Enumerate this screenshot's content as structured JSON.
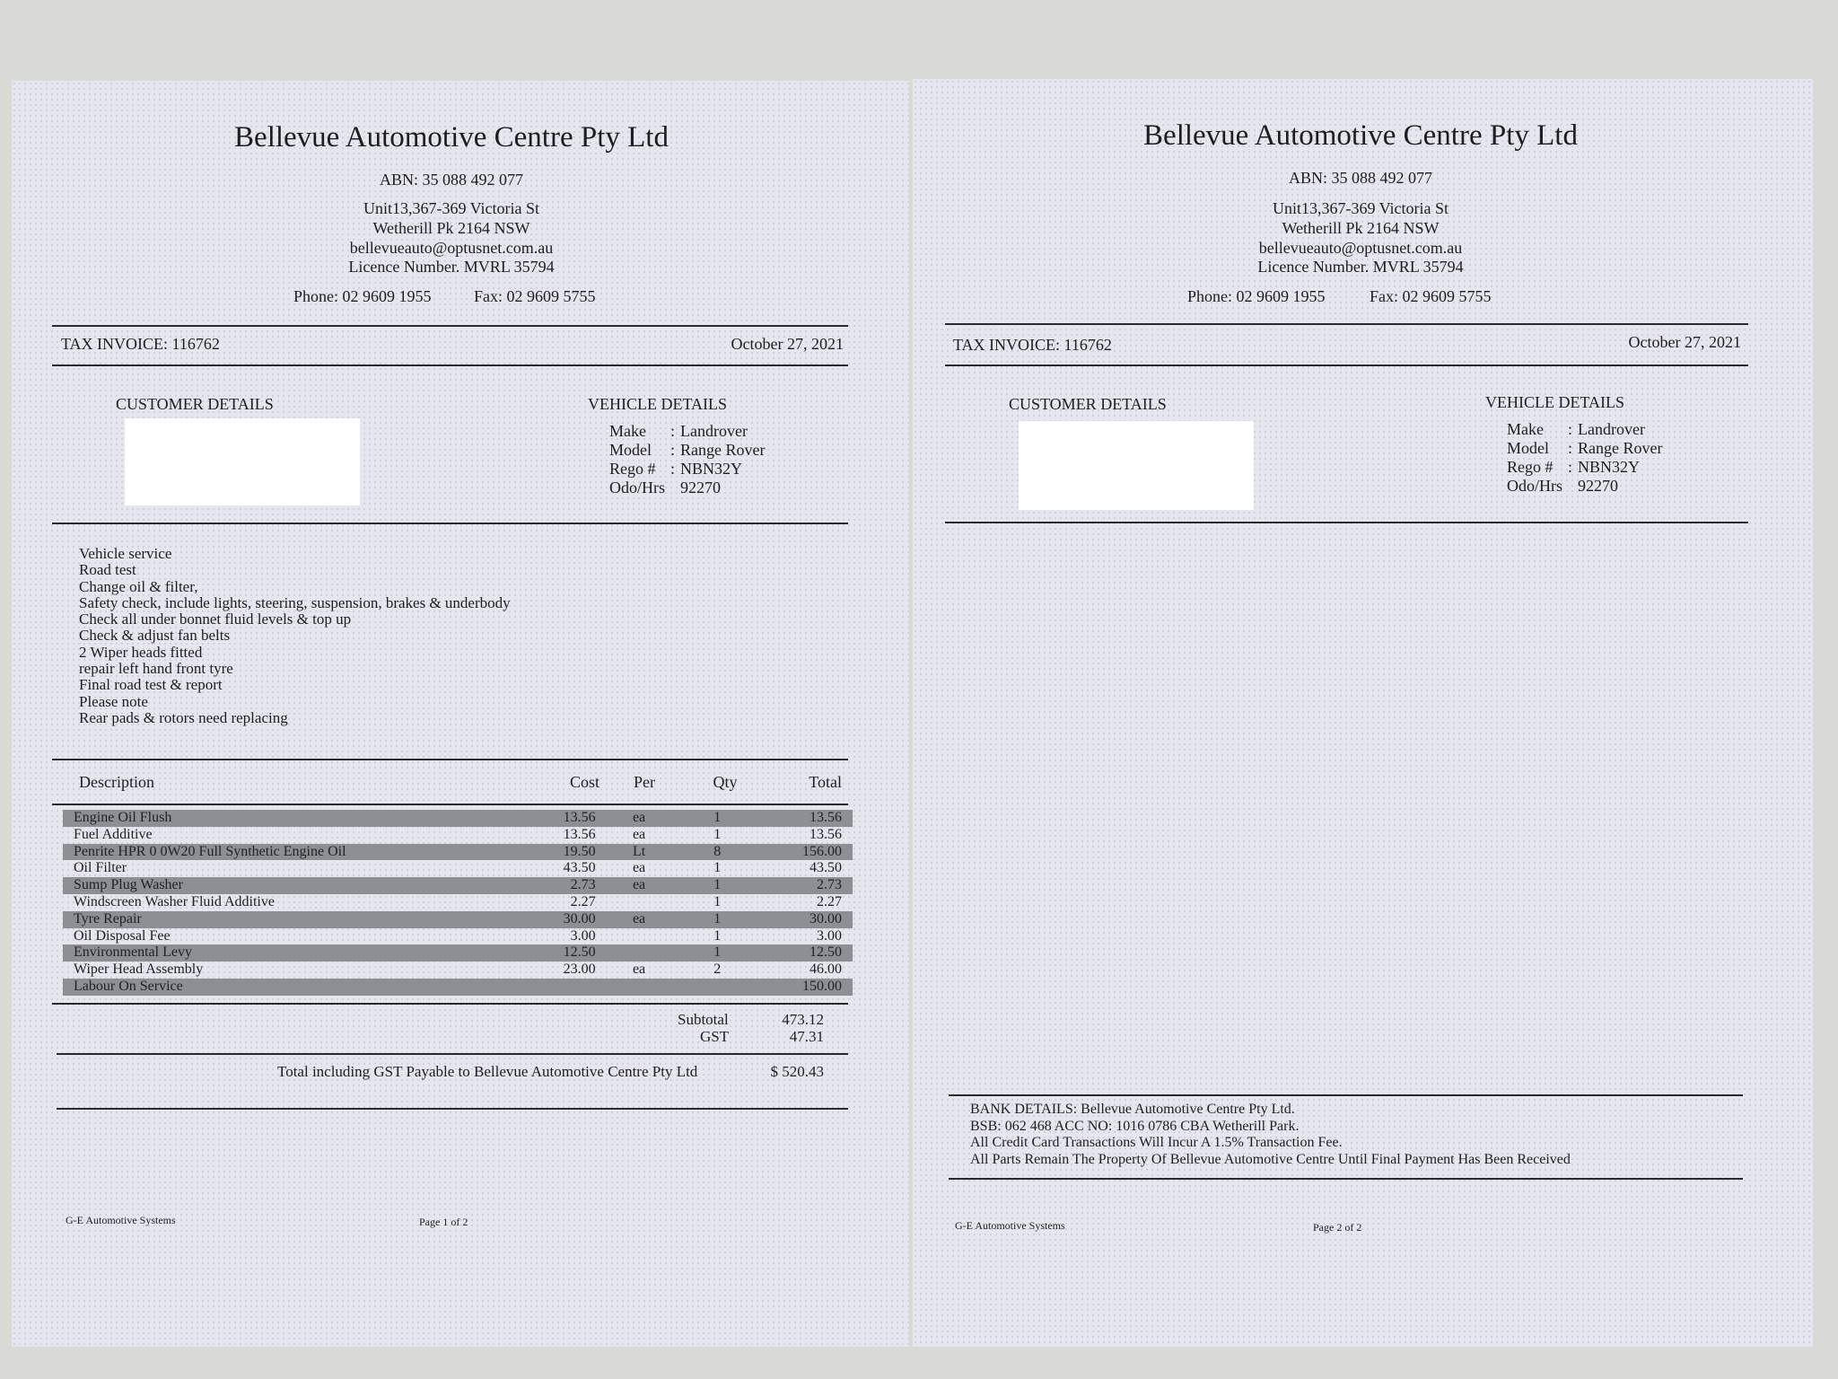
{
  "company": {
    "name": "Bellevue Automotive Centre Pty Ltd",
    "abn": "ABN: 35 088 492 077",
    "address_line1": "Unit13,367-369 Victoria St",
    "address_line2": "Wetherill Pk 2164 NSW",
    "email": "bellevueauto@optusnet.com.au",
    "licence": "Licence Number.  MVRL 35794",
    "phone": "Phone: 02 9609 1955",
    "fax": "Fax: 02 9609 5755"
  },
  "invoice": {
    "label": "TAX INVOICE: 116762",
    "date": "October 27, 2021"
  },
  "customer": {
    "heading": "CUSTOMER DETAILS"
  },
  "vehicle": {
    "heading": "VEHICLE DETAILS",
    "make_label": "Make",
    "make": "Landrover",
    "model_label": "Model",
    "model": "Range Rover",
    "rego_label": "Rego #",
    "rego": "NBN32Y",
    "odo_label": "Odo/Hrs",
    "odo": "92270"
  },
  "work_notes": [
    "Vehicle service",
    "Road test",
    "Change oil & filter,",
    "Safety check, include lights, steering, suspension, brakes & underbody",
    "Check all under bonnet fluid levels & top up",
    "Check & adjust fan belts",
    "2 Wiper heads fitted",
    "repair left hand front tyre",
    "Final road test & report",
    "Please note",
    "Rear pads & rotors need replacing"
  ],
  "items_header": {
    "description": "Description",
    "cost": "Cost",
    "per": "Per",
    "qty": "Qty",
    "total": "Total"
  },
  "items": [
    {
      "description": "Engine Oil Flush",
      "cost": "13.56",
      "per": "ea",
      "qty": "1",
      "total": "13.56"
    },
    {
      "description": "Fuel  Additive",
      "cost": "13.56",
      "per": "ea",
      "qty": "1",
      "total": "13.56"
    },
    {
      "description": "Penrite HPR 0  0W20 Full Synthetic Engine Oil",
      "cost": "19.50",
      "per": "Lt",
      "qty": "8",
      "total": "156.00"
    },
    {
      "description": "Oil Filter",
      "cost": "43.50",
      "per": "ea",
      "qty": "1",
      "total": "43.50"
    },
    {
      "description": "Sump Plug Washer",
      "cost": "2.73",
      "per": "ea",
      "qty": "1",
      "total": "2.73"
    },
    {
      "description": "Windscreen Washer Fluid Additive",
      "cost": "2.27",
      "per": "",
      "qty": "1",
      "total": "2.27"
    },
    {
      "description": "Tyre Repair",
      "cost": "30.00",
      "per": "ea",
      "qty": "1",
      "total": "30.00"
    },
    {
      "description": "Oil Disposal Fee",
      "cost": "3.00",
      "per": "",
      "qty": "1",
      "total": "3.00"
    },
    {
      "description": "Environmental Levy",
      "cost": "12.50",
      "per": "",
      "qty": "1",
      "total": "12.50"
    },
    {
      "description": "Wiper Head Assembly",
      "cost": "23.00",
      "per": "ea",
      "qty": "2",
      "total": "46.00"
    },
    {
      "description": "Labour On Service",
      "cost": "",
      "per": "",
      "qty": "",
      "total": "150.00"
    }
  ],
  "totals": {
    "subtotal_label": "Subtotal",
    "subtotal": "473.12",
    "gst_label": "GST",
    "gst": "47.31",
    "total_label": "Total including GST Payable to Bellevue Automotive Centre Pty Ltd",
    "total": "$ 520.43"
  },
  "bank": {
    "line1": "BANK DETAILS: Bellevue Automotive Centre Pty Ltd.",
    "line2": "BSB: 062 468   ACC NO: 1016 0786   CBA Wetherill Park.",
    "line3": "All Credit Card Transactions Will Incur A 1.5% Transaction Fee.",
    "line4": "All Parts Remain The Property Of Bellevue Automotive Centre Until Final Payment Has Been Received"
  },
  "footer": {
    "system": "G-E Automotive Systems",
    "page1": "Page 1 of 2",
    "page2": "Page 2 of 2"
  }
}
